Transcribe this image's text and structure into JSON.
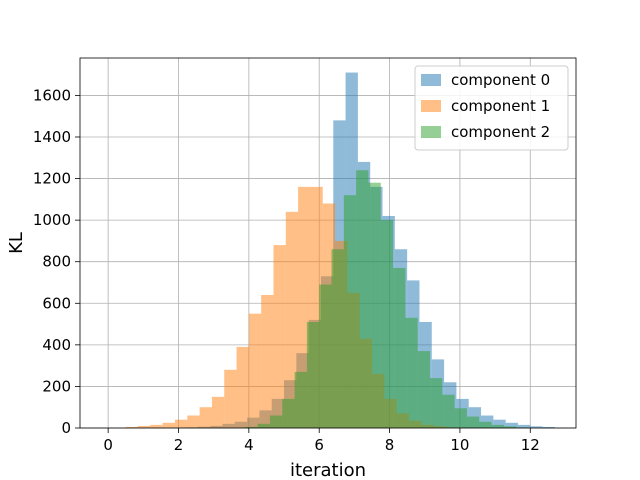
{
  "chart_data": {
    "type": "bar",
    "subtype": "overlapping-histogram",
    "title": "",
    "xlabel": "iteration",
    "ylabel": "KL",
    "xlim": [
      -0.8,
      13.3
    ],
    "ylim": [
      0,
      1780
    ],
    "xticks": [
      "0",
      "2",
      "4",
      "6",
      "8",
      "10",
      "12"
    ],
    "yticks": [
      "0",
      "200",
      "400",
      "600",
      "800",
      "1000",
      "1200",
      "1400",
      "1600"
    ],
    "grid": true,
    "legend_position": "top-right",
    "opacity": 0.5,
    "series": [
      {
        "name": "component 0",
        "color": "#1f77b4",
        "bin_start": 2.2,
        "bin_width": 0.35,
        "counts": [
          3,
          6,
          10,
          20,
          30,
          50,
          85,
          140,
          230,
          360,
          520,
          730,
          1480,
          1710,
          1280,
          1160,
          1020,
          860,
          710,
          510,
          330,
          220,
          140,
          100,
          60,
          40,
          25,
          15,
          8,
          5
        ]
      },
      {
        "name": "component 1",
        "color": "#ff7f0e",
        "bin_start": 0.5,
        "bin_width": 0.35,
        "counts": [
          5,
          10,
          15,
          25,
          40,
          60,
          100,
          150,
          280,
          390,
          550,
          640,
          880,
          1040,
          1160,
          1160,
          1080,
          900,
          650,
          430,
          260,
          140,
          70,
          35,
          15,
          8,
          3
        ]
      },
      {
        "name": "component 2",
        "color": "#2ca02c",
        "bin_start": 3.9,
        "bin_width": 0.35,
        "counts": [
          5,
          20,
          60,
          140,
          270,
          510,
          690,
          860,
          1120,
          1240,
          1180,
          1000,
          770,
          530,
          370,
          240,
          160,
          95,
          55,
          30,
          15,
          8,
          3
        ]
      }
    ]
  }
}
